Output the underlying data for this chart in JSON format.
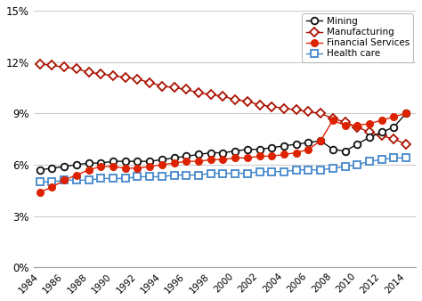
{
  "years": [
    1984,
    1985,
    1986,
    1987,
    1988,
    1989,
    1990,
    1991,
    1992,
    1993,
    1994,
    1995,
    1996,
    1997,
    1998,
    1999,
    2000,
    2001,
    2002,
    2003,
    2004,
    2005,
    2006,
    2007,
    2008,
    2009,
    2010,
    2011,
    2012,
    2013,
    2014
  ],
  "mining": [
    0.057,
    0.058,
    0.059,
    0.06,
    0.061,
    0.061,
    0.062,
    0.062,
    0.062,
    0.062,
    0.063,
    0.064,
    0.065,
    0.066,
    0.067,
    0.067,
    0.068,
    0.069,
    0.069,
    0.07,
    0.071,
    0.072,
    0.073,
    0.074,
    0.069,
    0.068,
    0.072,
    0.076,
    0.079,
    0.082,
    0.09
  ],
  "manufacturing": [
    0.119,
    0.118,
    0.117,
    0.116,
    0.114,
    0.113,
    0.112,
    0.111,
    0.11,
    0.108,
    0.106,
    0.105,
    0.104,
    0.102,
    0.101,
    0.1,
    0.098,
    0.097,
    0.095,
    0.094,
    0.093,
    0.092,
    0.091,
    0.09,
    0.087,
    0.085,
    0.082,
    0.079,
    0.077,
    0.075,
    0.072
  ],
  "financial_services": [
    0.044,
    0.047,
    0.051,
    0.054,
    0.057,
    0.059,
    0.059,
    0.058,
    0.058,
    0.059,
    0.06,
    0.061,
    0.062,
    0.062,
    0.063,
    0.063,
    0.064,
    0.064,
    0.065,
    0.065,
    0.066,
    0.067,
    0.069,
    0.074,
    0.086,
    0.083,
    0.083,
    0.084,
    0.086,
    0.088,
    0.09
  ],
  "health_care": [
    0.05,
    0.05,
    0.051,
    0.051,
    0.051,
    0.052,
    0.052,
    0.052,
    0.053,
    0.053,
    0.053,
    0.054,
    0.054,
    0.054,
    0.055,
    0.055,
    0.055,
    0.055,
    0.056,
    0.056,
    0.056,
    0.057,
    0.057,
    0.057,
    0.058,
    0.059,
    0.06,
    0.062,
    0.063,
    0.064,
    0.064
  ],
  "mining_color": "#111111",
  "manufacturing_color": "#aa1100",
  "financial_color": "#dd2200",
  "health_color": "#4488cc",
  "grid_color": "#cccccc",
  "bg_color": "#ffffff",
  "ylim": [
    0.0,
    0.15
  ],
  "yticks": [
    0.0,
    0.03,
    0.06,
    0.09,
    0.12,
    0.15
  ],
  "ytick_labels": [
    "0%",
    "3%",
    "6%",
    "9%",
    "12%",
    "15%"
  ],
  "xticks": [
    1984,
    1986,
    1988,
    1990,
    1992,
    1994,
    1996,
    1998,
    2000,
    2002,
    2004,
    2006,
    2008,
    2010,
    2012,
    2014
  ],
  "legend_labels": [
    "Mining",
    "Manufacturing",
    "Financial Services",
    "Health care"
  ]
}
